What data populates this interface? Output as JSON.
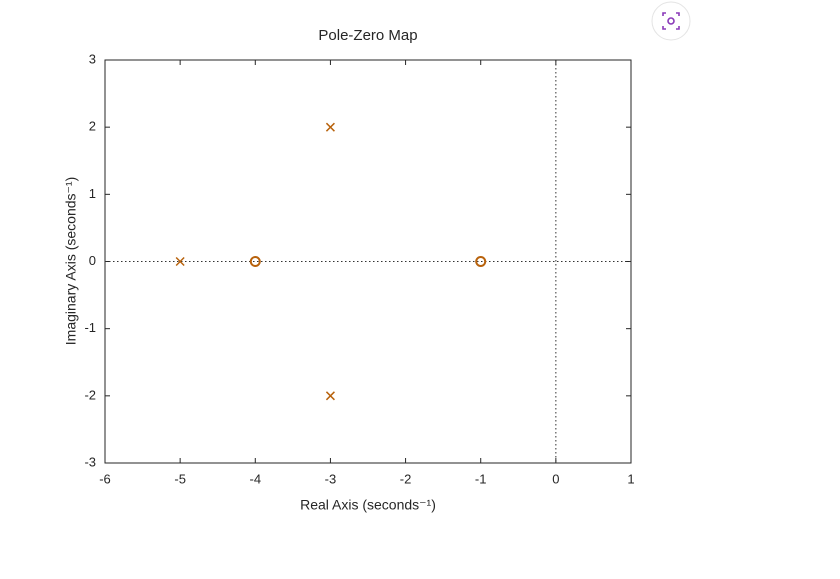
{
  "chart_data": {
    "type": "pole-zero",
    "title": "Pole-Zero Map",
    "xlabel": "Real Axis (seconds⁻¹)",
    "ylabel": "Imaginary Axis (seconds⁻¹)",
    "xlim": [
      -6,
      1
    ],
    "ylim": [
      -3,
      3
    ],
    "xticks": [
      -6,
      -5,
      -4,
      -3,
      -2,
      -1,
      0,
      1
    ],
    "yticks": [
      -3,
      -2,
      -1,
      0,
      1,
      2,
      3
    ],
    "zero_lines": true,
    "series": [
      {
        "marker": "x",
        "color": "#b8620c",
        "x": [
          -5,
          -3,
          -3
        ],
        "values": [
          0,
          2,
          -2
        ]
      },
      {
        "marker": "o",
        "color": "#b8620c",
        "x": [
          -4,
          -1
        ],
        "values": [
          0,
          0
        ]
      }
    ]
  }
}
